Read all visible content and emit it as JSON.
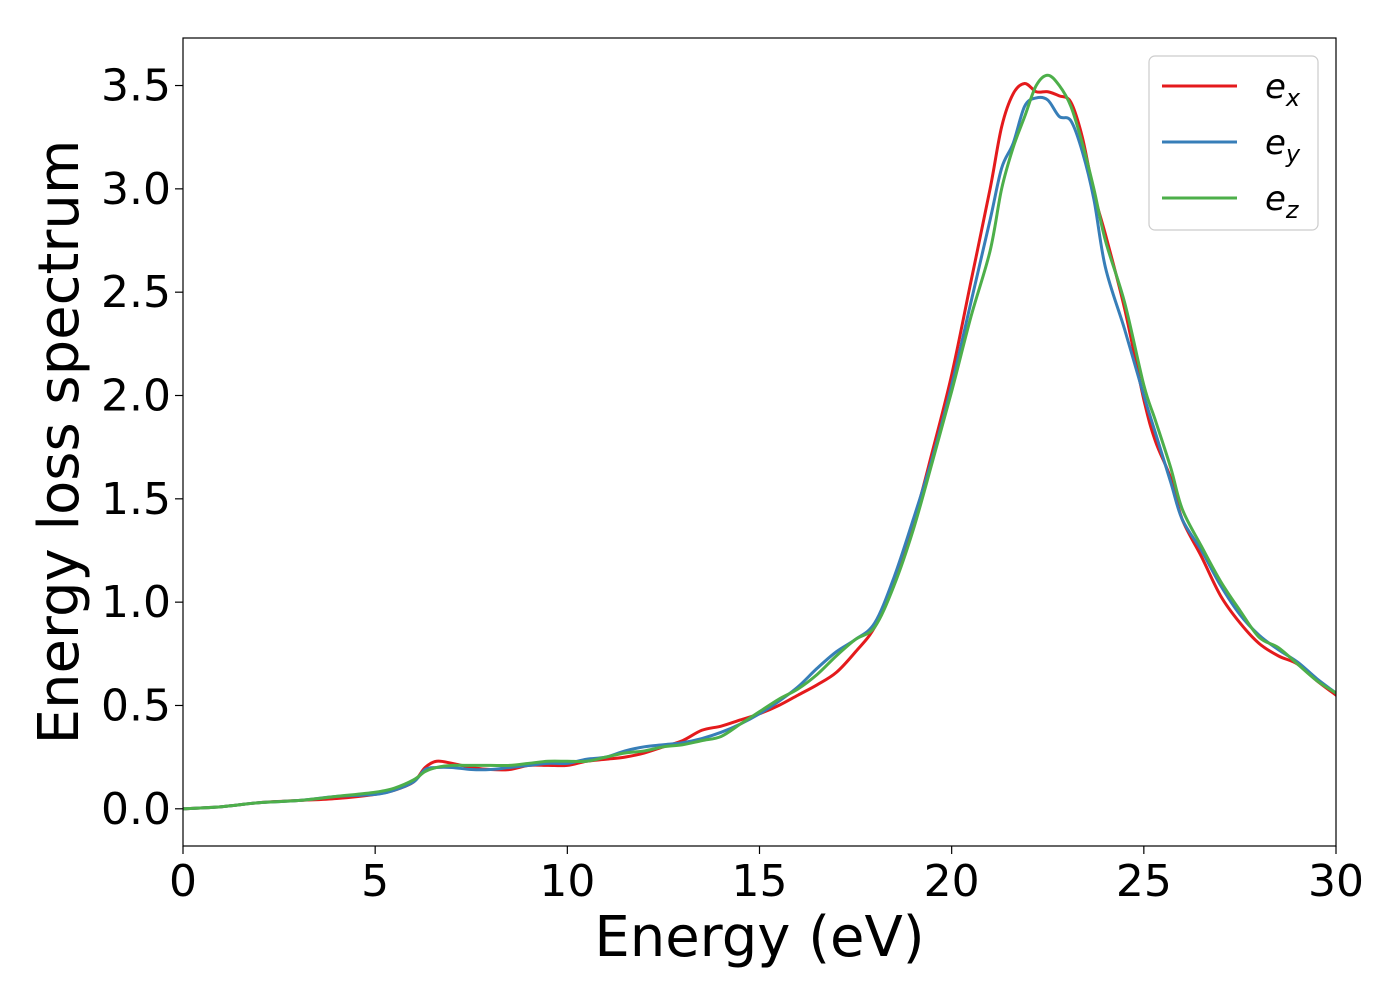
{
  "chart_data": {
    "type": "line",
    "title": "",
    "xlabel": "Energy (eV)",
    "ylabel": "Energy loss spectrum",
    "xlim": [
      0,
      30
    ],
    "ylim": [
      -0.18,
      3.73
    ],
    "grid": false,
    "legend_position": "top-right",
    "x_ticks": [
      0,
      5,
      10,
      15,
      20,
      25,
      30
    ],
    "x_tick_labels": [
      "0",
      "5",
      "10",
      "15",
      "20",
      "25",
      "30"
    ],
    "y_ticks": [
      0.0,
      0.5,
      1.0,
      1.5,
      2.0,
      2.5,
      3.0,
      3.5
    ],
    "y_tick_labels": [
      "0.0",
      "0.5",
      "1.0",
      "1.5",
      "2.0",
      "2.5",
      "3.0",
      "3.5"
    ],
    "series": [
      {
        "name": "e_x",
        "label_base": "e",
        "label_sub": "x",
        "color": "#e41a1c",
        "x": [
          0,
          1,
          2,
          3,
          4,
          5,
          5.5,
          6,
          6.3,
          6.6,
          7,
          7.5,
          8,
          8.5,
          9,
          9.5,
          10,
          10.5,
          11,
          11.5,
          12,
          12.5,
          13,
          13.5,
          14,
          14.5,
          15,
          15.5,
          16,
          16.5,
          17,
          17.5,
          18,
          18.5,
          19,
          19.5,
          20,
          20.5,
          21,
          21.3,
          21.6,
          21.9,
          22.2,
          22.5,
          22.8,
          23.1,
          23.4,
          23.7,
          24,
          24.5,
          25,
          25.3,
          25.7,
          26,
          26.5,
          27,
          27.5,
          28,
          28.5,
          29,
          29.5,
          30
        ],
        "y": [
          0.0,
          0.01,
          0.03,
          0.04,
          0.05,
          0.07,
          0.09,
          0.13,
          0.2,
          0.23,
          0.22,
          0.2,
          0.19,
          0.19,
          0.21,
          0.21,
          0.21,
          0.23,
          0.24,
          0.25,
          0.27,
          0.3,
          0.33,
          0.38,
          0.4,
          0.43,
          0.46,
          0.5,
          0.55,
          0.6,
          0.66,
          0.76,
          0.88,
          1.1,
          1.38,
          1.73,
          2.1,
          2.55,
          3.0,
          3.3,
          3.46,
          3.51,
          3.47,
          3.47,
          3.45,
          3.42,
          3.25,
          2.98,
          2.78,
          2.42,
          1.98,
          1.78,
          1.6,
          1.4,
          1.22,
          1.03,
          0.9,
          0.8,
          0.74,
          0.7,
          0.62,
          0.55
        ]
      },
      {
        "name": "e_y",
        "label_base": "e",
        "label_sub": "y",
        "color": "#377eb8",
        "x": [
          0,
          1,
          2,
          3,
          4,
          5,
          5.5,
          6,
          6.3,
          6.6,
          7,
          7.5,
          8,
          8.5,
          9,
          9.5,
          10,
          10.5,
          11,
          11.5,
          12,
          12.5,
          13,
          13.5,
          14,
          14.5,
          15,
          15.5,
          16,
          16.5,
          17,
          17.5,
          18,
          18.5,
          19,
          19.5,
          20,
          20.5,
          21,
          21.3,
          21.6,
          21.9,
          22.2,
          22.5,
          22.8,
          23.1,
          23.4,
          23.7,
          24,
          24.5,
          25,
          25.3,
          25.7,
          26,
          26.5,
          27,
          27.5,
          28,
          28.5,
          29,
          29.5,
          30
        ],
        "y": [
          0.0,
          0.01,
          0.03,
          0.04,
          0.06,
          0.07,
          0.09,
          0.13,
          0.19,
          0.2,
          0.2,
          0.19,
          0.19,
          0.2,
          0.21,
          0.22,
          0.22,
          0.24,
          0.25,
          0.28,
          0.3,
          0.31,
          0.32,
          0.34,
          0.37,
          0.41,
          0.46,
          0.52,
          0.59,
          0.68,
          0.76,
          0.82,
          0.9,
          1.12,
          1.4,
          1.7,
          2.05,
          2.45,
          2.85,
          3.1,
          3.22,
          3.4,
          3.44,
          3.43,
          3.35,
          3.33,
          3.18,
          2.95,
          2.62,
          2.32,
          2.0,
          1.82,
          1.58,
          1.4,
          1.25,
          1.08,
          0.94,
          0.84,
          0.77,
          0.71,
          0.63,
          0.56
        ]
      },
      {
        "name": "e_z",
        "label_base": "e",
        "label_sub": "z",
        "color": "#4daf4a",
        "x": [
          0,
          1,
          2,
          3,
          4,
          5,
          5.5,
          6,
          6.3,
          6.6,
          7,
          7.5,
          8,
          8.5,
          9,
          9.5,
          10,
          10.5,
          11,
          11.5,
          12,
          12.5,
          13,
          13.5,
          14,
          14.5,
          15,
          15.5,
          16,
          16.5,
          17,
          17.5,
          18,
          18.5,
          19,
          19.5,
          20,
          20.5,
          21,
          21.3,
          21.6,
          21.9,
          22.2,
          22.5,
          22.8,
          23.1,
          23.4,
          23.7,
          24,
          24.5,
          25,
          25.3,
          25.7,
          26,
          26.5,
          27,
          27.5,
          28,
          28.5,
          29,
          29.5,
          30
        ],
        "y": [
          0.0,
          0.01,
          0.03,
          0.04,
          0.06,
          0.08,
          0.1,
          0.14,
          0.18,
          0.2,
          0.21,
          0.21,
          0.21,
          0.21,
          0.22,
          0.23,
          0.23,
          0.23,
          0.25,
          0.27,
          0.28,
          0.3,
          0.31,
          0.33,
          0.35,
          0.41,
          0.47,
          0.53,
          0.58,
          0.65,
          0.74,
          0.82,
          0.88,
          1.08,
          1.35,
          1.68,
          2.02,
          2.38,
          2.7,
          3.0,
          3.2,
          3.35,
          3.5,
          3.55,
          3.5,
          3.4,
          3.22,
          3.0,
          2.75,
          2.45,
          2.05,
          1.88,
          1.65,
          1.45,
          1.27,
          1.1,
          0.96,
          0.83,
          0.78,
          0.7,
          0.62,
          0.56
        ]
      }
    ]
  }
}
